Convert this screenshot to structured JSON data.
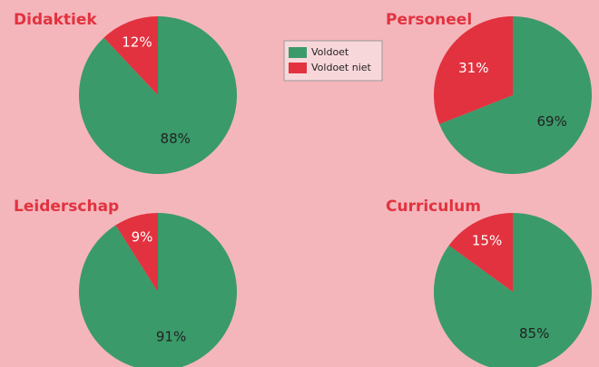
{
  "legend": {
    "labels": [
      "Voldoet",
      "Voldoet niet"
    ],
    "colors": [
      "#3a9a6a",
      "#e2323f"
    ]
  },
  "chart_data": [
    {
      "type": "pie",
      "title": "Didaktiek",
      "values": [
        88,
        12
      ],
      "value_labels": [
        "88%",
        "12%"
      ]
    },
    {
      "type": "pie",
      "title": "Personeel",
      "values": [
        69,
        31
      ],
      "value_labels": [
        "69%",
        "31%"
      ]
    },
    {
      "type": "pie",
      "title": "Leiderschap",
      "values": [
        91,
        9
      ],
      "value_labels": [
        "91%",
        "9%"
      ]
    },
    {
      "type": "pie",
      "title": "Curriculum",
      "values": [
        85,
        15
      ],
      "value_labels": [
        "85%",
        "15%"
      ]
    }
  ]
}
